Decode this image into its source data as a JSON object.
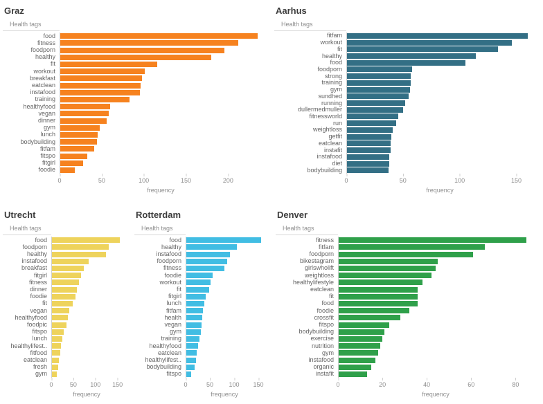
{
  "chart_data": [
    {
      "type": "bar",
      "orientation": "horizontal",
      "title": "Graz",
      "rows_label": "Health tags",
      "xlabel": "frequency",
      "color": "#F6821F",
      "ticks": [
        0,
        50,
        100,
        150,
        200
      ],
      "xmax": 240,
      "categories": [
        "food",
        "fitness",
        "foodporn",
        "healthy",
        "fit",
        "workout",
        "breakfast",
        "eatclean",
        "instafood",
        "training",
        "healthyfood",
        "vegan",
        "dinner",
        "gym",
        "lunch",
        "bodybuilding",
        "fitfam",
        "fitspo",
        "fitgirl",
        "foodie"
      ],
      "values": [
        235,
        212,
        196,
        180,
        116,
        101,
        98,
        96,
        95,
        83,
        60,
        58,
        56,
        48,
        45,
        44,
        41,
        33,
        28,
        18
      ]
    },
    {
      "type": "bar",
      "orientation": "horizontal",
      "title": "Aarhus",
      "rows_label": "Health tags",
      "xlabel": "frequency",
      "color": "#336F85",
      "ticks": [
        0,
        50,
        100,
        150
      ],
      "xmax": 165,
      "categories": [
        "fitfam",
        "workout",
        "fit",
        "healthy",
        "food",
        "foodporn",
        "strong",
        "training",
        "gym",
        "sundhed",
        "running",
        "dullermedmuller",
        "fitnessworld",
        "run",
        "weightloss",
        "getfit",
        "eatclean",
        "instafit",
        "instafood",
        "diet",
        "bodybuilding"
      ],
      "values": [
        160,
        146,
        134,
        114,
        105,
        58,
        57,
        57,
        56,
        55,
        52,
        50,
        46,
        44,
        41,
        40,
        39,
        39,
        38,
        38,
        37
      ]
    },
    {
      "type": "bar",
      "orientation": "horizontal",
      "title": "Utrecht",
      "rows_label": "Health tags",
      "xlabel": "frequency",
      "color": "#EED35C",
      "ticks": [
        0,
        50,
        100,
        150
      ],
      "xmax": 160,
      "categories": [
        "food",
        "foodporn",
        "healthy",
        "instafood",
        "breakfast",
        "fitgirl",
        "fitness",
        "dinner",
        "foodie",
        "fit",
        "vegan",
        "healthyfood",
        "foodpic",
        "fitspo",
        "lunch",
        "healthylifest..",
        "fitfood",
        "eatclean",
        "fresh",
        "gym"
      ],
      "values": [
        155,
        130,
        124,
        85,
        74,
        68,
        62,
        58,
        55,
        48,
        40,
        38,
        35,
        28,
        25,
        22,
        20,
        18,
        15,
        13
      ]
    },
    {
      "type": "bar",
      "orientation": "horizontal",
      "title": "Rotterdam",
      "rows_label": "Health tags",
      "xlabel": "frequency",
      "color": "#41BDE3",
      "ticks": [
        0,
        50,
        100,
        150
      ],
      "xmax": 160,
      "categories": [
        "food",
        "healthy",
        "instafood",
        "foodporn",
        "fitness",
        "foodie",
        "workout",
        "fit",
        "fitgirl",
        "lunch",
        "fitfam",
        "health",
        "vegan",
        "gym",
        "training",
        "healthyfood",
        "eatclean",
        "healthylifest..",
        "bodybuilding",
        "fitspo"
      ],
      "values": [
        155,
        105,
        91,
        86,
        80,
        56,
        52,
        49,
        41,
        39,
        36,
        34,
        33,
        31,
        29,
        26,
        23,
        21,
        18,
        12
      ]
    },
    {
      "type": "bar",
      "orientation": "horizontal",
      "title": "Denver",
      "rows_label": "Health tags",
      "xlabel": "frequency",
      "color": "#2FA04A",
      "ticks": [
        0,
        20,
        40,
        60,
        80
      ],
      "xmax": 88,
      "categories": [
        "fitness",
        "fitfam",
        "foodporn",
        "bikestagram",
        "girlswholift",
        "weightloss",
        "healthylifestyle",
        "eatclean",
        "fit",
        "food",
        "foodie",
        "crossfit",
        "fitspo",
        "bodybuilding",
        "exercise",
        "nutrition",
        "gym",
        "instafood",
        "organic",
        "instafit"
      ],
      "values": [
        85,
        66,
        61,
        45,
        44,
        42,
        38,
        36,
        36,
        36,
        32,
        28,
        23,
        21,
        20,
        19,
        18,
        17,
        15,
        13
      ]
    }
  ]
}
